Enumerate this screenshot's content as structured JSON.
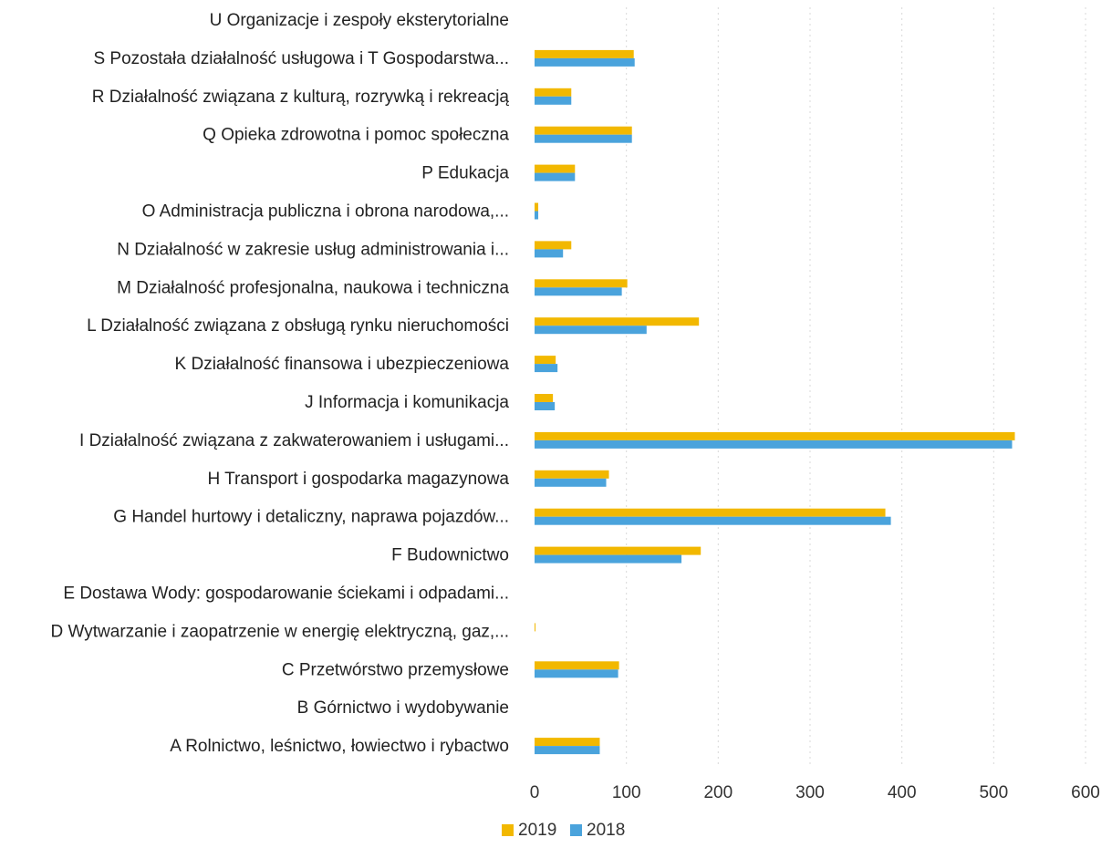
{
  "chart_data": {
    "type": "bar",
    "orientation": "horizontal",
    "categories": [
      "U Organizacje i zespoły eksterytorialne",
      "S Pozostała działalność usługowa i T Gospodarstwa...",
      "R Działalność związana z kulturą, rozrywką i rekreacją",
      "Q Opieka zdrowotna i pomoc społeczna",
      "P Edukacja",
      "O Administracja publiczna i obrona narodowa,...",
      "N Działalność w zakresie usług administrowania i...",
      "M Działalność profesjonalna, naukowa i techniczna",
      "L Działalność związana z obsługą rynku nieruchomości",
      "K Działalność finansowa i ubezpieczeniowa",
      "J Informacja i komunikacja",
      "I Działalność związana z zakwaterowaniem i usługami...",
      "H Transport i gospodarka magazynowa",
      "G Handel hurtowy i detaliczny, naprawa pojazdów...",
      "F Budownictwo",
      "E Dostawa Wody: gospodarowanie ściekami i odpadami...",
      "D Wytwarzanie i zaopatrzenie w energię elektryczną, gaz,...",
      "C Przetwórstwo przemysłowe",
      "B Górnictwo i wydobywanie",
      "A Rolnictwo, leśnictwo, łowiectwo i rybactwo"
    ],
    "series": [
      {
        "name": "2019",
        "color": "#f2b800",
        "values": [
          0,
          108,
          40,
          106,
          44,
          4,
          40,
          101,
          179,
          23,
          20,
          523,
          81,
          382,
          181,
          0,
          1,
          92,
          0,
          71
        ]
      },
      {
        "name": "2018",
        "color": "#4aa3dc",
        "values": [
          0,
          109,
          40,
          106,
          44,
          4,
          31,
          95,
          122,
          25,
          22,
          520,
          78,
          388,
          160,
          0,
          0,
          91,
          0,
          71
        ]
      }
    ],
    "xlim": [
      0,
      600
    ],
    "xticks": [
      "0",
      "100",
      "200",
      "300",
      "400",
      "500",
      "600"
    ],
    "grid": true,
    "legend_position": "bottom"
  }
}
